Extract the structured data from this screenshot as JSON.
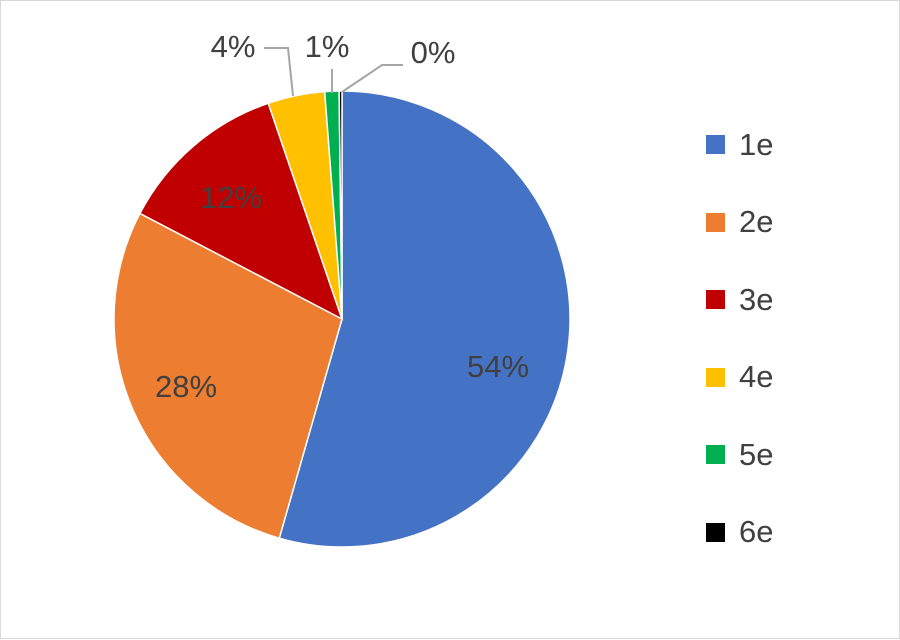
{
  "chart_data": {
    "type": "pie",
    "categories": [
      "1e",
      "2e",
      "3e",
      "4e",
      "5e",
      "6e"
    ],
    "values": [
      54,
      28,
      12,
      4,
      1,
      0.2
    ],
    "data_labels": [
      "54%",
      "28%",
      "12%",
      "4%",
      "1%",
      "0%"
    ],
    "colors": [
      "#4472c4",
      "#ed7d31",
      "#c00000",
      "#ffc000",
      "#00b050",
      "#000000"
    ],
    "legend_position": "right",
    "start_angle": "12 o'clock",
    "direction": "clockwise"
  },
  "legend": {
    "items": [
      {
        "label": "1e",
        "color": "#4472c4"
      },
      {
        "label": "2e",
        "color": "#ed7d31"
      },
      {
        "label": "3e",
        "color": "#c00000"
      },
      {
        "label": "4e",
        "color": "#ffc000"
      },
      {
        "label": "5e",
        "color": "#00b050"
      },
      {
        "label": "6e",
        "color": "#000000"
      }
    ]
  }
}
